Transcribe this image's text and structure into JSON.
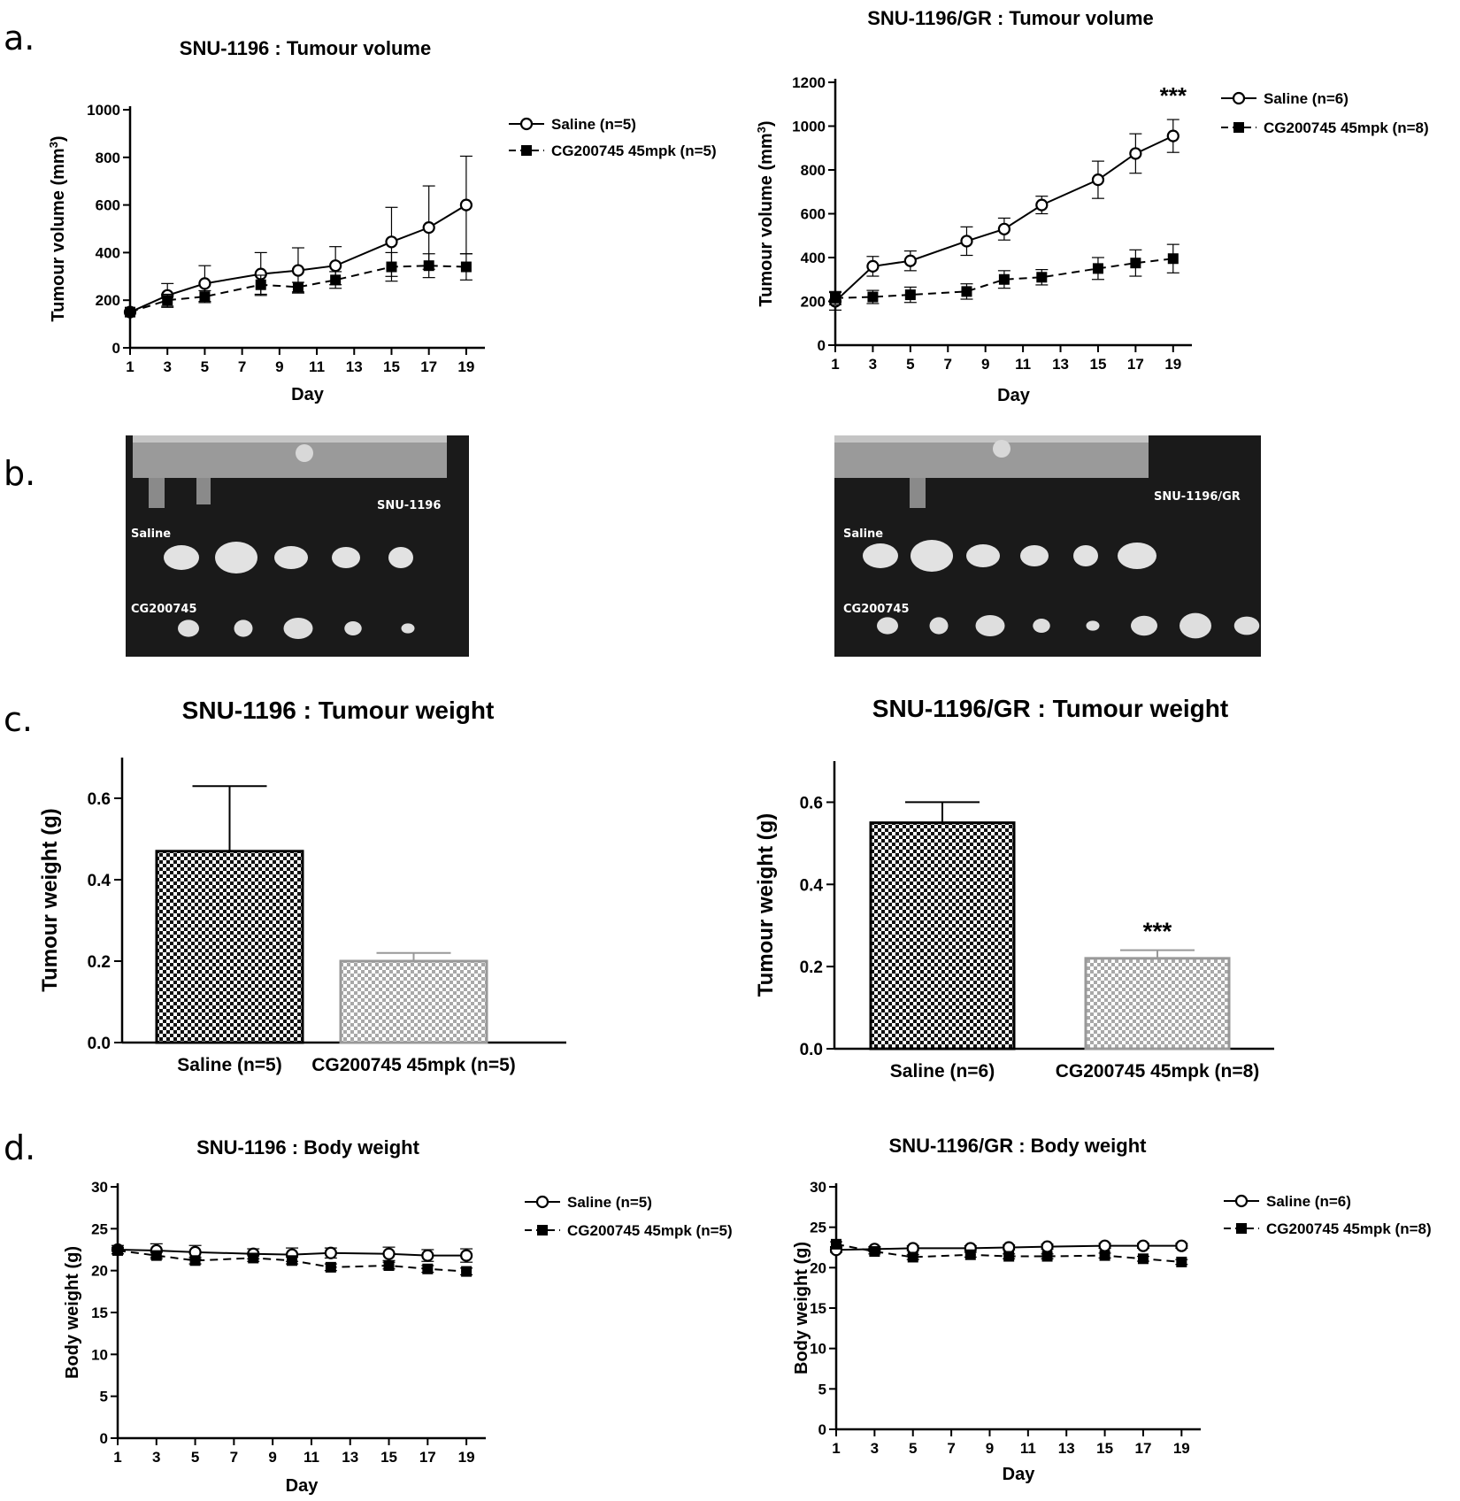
{
  "panel_letters": {
    "a": "a.",
    "b": "b.",
    "c": "c.",
    "d": "d."
  },
  "photos": [
    {
      "group1": "Saline",
      "group2": "CG200745",
      "cell_line": "SNU-1196",
      "saline_count": 5,
      "drug_count": 5
    },
    {
      "group1": "Saline",
      "group2": "CG200745",
      "cell_line": "SNU-1196/GR",
      "saline_count": 6,
      "drug_count": 8
    }
  ],
  "chart_data": [
    {
      "id": "vol1",
      "type": "line",
      "title": "SNU-1196 : Tumour volume",
      "xlabel": "Day",
      "ylabel": "Tumour volume (mm3)",
      "x": [
        1,
        3,
        5,
        8,
        10,
        12,
        15,
        17,
        19
      ],
      "xticks": [
        1,
        3,
        5,
        7,
        9,
        11,
        13,
        15,
        17,
        19
      ],
      "xlim": [
        1,
        20
      ],
      "yticks": [
        0,
        200,
        400,
        600,
        800,
        1000
      ],
      "ylim": [
        0,
        1000
      ],
      "series": [
        {
          "name": "Saline (n=5)",
          "marker": "open-circle",
          "dash": "solid",
          "values": [
            150,
            220,
            270,
            310,
            325,
            345,
            445,
            505,
            600
          ],
          "err": [
            0,
            50,
            75,
            90,
            95,
            80,
            145,
            175,
            205
          ]
        },
        {
          "name": "CG200745 45mpk (n=5)",
          "marker": "filled-square",
          "dash": "dashed",
          "values": [
            150,
            200,
            215,
            265,
            255,
            285,
            340,
            345,
            340
          ],
          "err": [
            0,
            25,
            25,
            40,
            20,
            35,
            60,
            50,
            55
          ]
        }
      ],
      "annotation": ""
    },
    {
      "id": "vol2",
      "type": "line",
      "title": "SNU-1196/GR : Tumour volume",
      "xlabel": "Day",
      "ylabel": "Tumour volume (mm3)",
      "x": [
        1,
        3,
        5,
        8,
        10,
        12,
        15,
        17,
        19
      ],
      "xticks": [
        1,
        3,
        5,
        7,
        9,
        11,
        13,
        15,
        17,
        19
      ],
      "xlim": [
        1,
        20
      ],
      "yticks": [
        0,
        200,
        400,
        600,
        800,
        1000,
        1200
      ],
      "ylim": [
        0,
        1200
      ],
      "series": [
        {
          "name": "Saline (n=6)",
          "marker": "open-circle",
          "dash": "solid",
          "values": [
            200,
            360,
            385,
            475,
            530,
            640,
            755,
            875,
            955
          ],
          "err": [
            40,
            45,
            45,
            65,
            50,
            40,
            85,
            90,
            75
          ]
        },
        {
          "name": "CG200745 45mpk (n=8)",
          "marker": "filled-square",
          "dash": "dashed",
          "values": [
            215,
            220,
            230,
            245,
            300,
            310,
            350,
            375,
            395
          ],
          "err": [
            30,
            30,
            35,
            35,
            40,
            35,
            50,
            60,
            65
          ]
        }
      ],
      "annotation": "***"
    },
    {
      "id": "w1",
      "type": "bar",
      "title": "SNU-1196 : Tumour weight",
      "ylabel": "Tumour weight (g)",
      "categories": [
        "Saline (n=5)",
        "CG200745 45mpk (n=5)"
      ],
      "values": [
        0.47,
        0.2
      ],
      "err": [
        0.16,
        0.02
      ],
      "yticks": [
        0.0,
        0.2,
        0.4,
        0.6
      ],
      "ylim": [
        0,
        0.7
      ],
      "ytick_labels": [
        "0.0",
        "0.2",
        "0.4",
        "0.6"
      ],
      "annotation": ""
    },
    {
      "id": "w2",
      "type": "bar",
      "title": "SNU-1196/GR : Tumour weight",
      "ylabel": "Tumour weight (g)",
      "categories": [
        "Saline (n=6)",
        "CG200745 45mpk (n=8)"
      ],
      "values": [
        0.55,
        0.22
      ],
      "err": [
        0.05,
        0.02
      ],
      "yticks": [
        0.0,
        0.2,
        0.4,
        0.6
      ],
      "ylim": [
        0,
        0.7
      ],
      "ytick_labels": [
        "0.0",
        "0.2",
        "0.4",
        "0.6"
      ],
      "annotation": "***"
    },
    {
      "id": "bw1",
      "type": "line",
      "title": "SNU-1196 : Body weight",
      "xlabel": "Day",
      "ylabel": "Body weight (g)",
      "x": [
        1,
        3,
        5,
        8,
        10,
        12,
        15,
        17,
        19
      ],
      "xticks": [
        1,
        3,
        5,
        7,
        9,
        11,
        13,
        15,
        17,
        19
      ],
      "xlim": [
        1,
        20
      ],
      "yticks": [
        0,
        5,
        10,
        15,
        20,
        25,
        30
      ],
      "ylim": [
        0,
        30
      ],
      "series": [
        {
          "name": "Saline (n=5)",
          "marker": "open-circle",
          "dash": "solid",
          "values": [
            22.5,
            22.4,
            22.2,
            22.0,
            21.9,
            22.1,
            22.0,
            21.8,
            21.8
          ],
          "err": [
            0.5,
            0.8,
            0.8,
            0.6,
            0.8,
            0.6,
            0.8,
            0.7,
            0.8
          ]
        },
        {
          "name": "CG200745 45mpk (n=5)",
          "marker": "filled-square",
          "dash": "dashed",
          "values": [
            22.4,
            21.8,
            21.2,
            21.5,
            21.2,
            20.4,
            20.6,
            20.2,
            19.9
          ],
          "err": [
            0.4,
            0.4,
            0.4,
            0.4,
            0.4,
            0.4,
            0.4,
            0.4,
            0.4
          ]
        }
      ],
      "annotation": ""
    },
    {
      "id": "bw2",
      "type": "line",
      "title": "SNU-1196/GR : Body weight",
      "xlabel": "Day",
      "ylabel": "Body weight (g)",
      "x": [
        1,
        3,
        5,
        8,
        10,
        12,
        15,
        17,
        19
      ],
      "xticks": [
        1,
        3,
        5,
        7,
        9,
        11,
        13,
        15,
        17,
        19
      ],
      "xlim": [
        1,
        20
      ],
      "yticks": [
        0,
        5,
        10,
        15,
        20,
        25,
        30
      ],
      "ylim": [
        0,
        30
      ],
      "series": [
        {
          "name": "Saline (n=6)",
          "marker": "open-circle",
          "dash": "solid",
          "values": [
            22.2,
            22.3,
            22.4,
            22.4,
            22.5,
            22.6,
            22.7,
            22.7,
            22.7
          ],
          "err": [
            0.3,
            0.3,
            0.3,
            0.3,
            0.3,
            0.3,
            0.3,
            0.3,
            0.3
          ]
        },
        {
          "name": "CG200745 45mpk (n=8)",
          "marker": "filled-square",
          "dash": "dashed",
          "values": [
            22.9,
            22.0,
            21.3,
            21.6,
            21.4,
            21.4,
            21.5,
            21.1,
            20.7
          ],
          "err": [
            0.3,
            0.3,
            0.3,
            0.3,
            0.3,
            0.3,
            0.3,
            0.3,
            0.3
          ]
        }
      ],
      "annotation": ""
    }
  ]
}
